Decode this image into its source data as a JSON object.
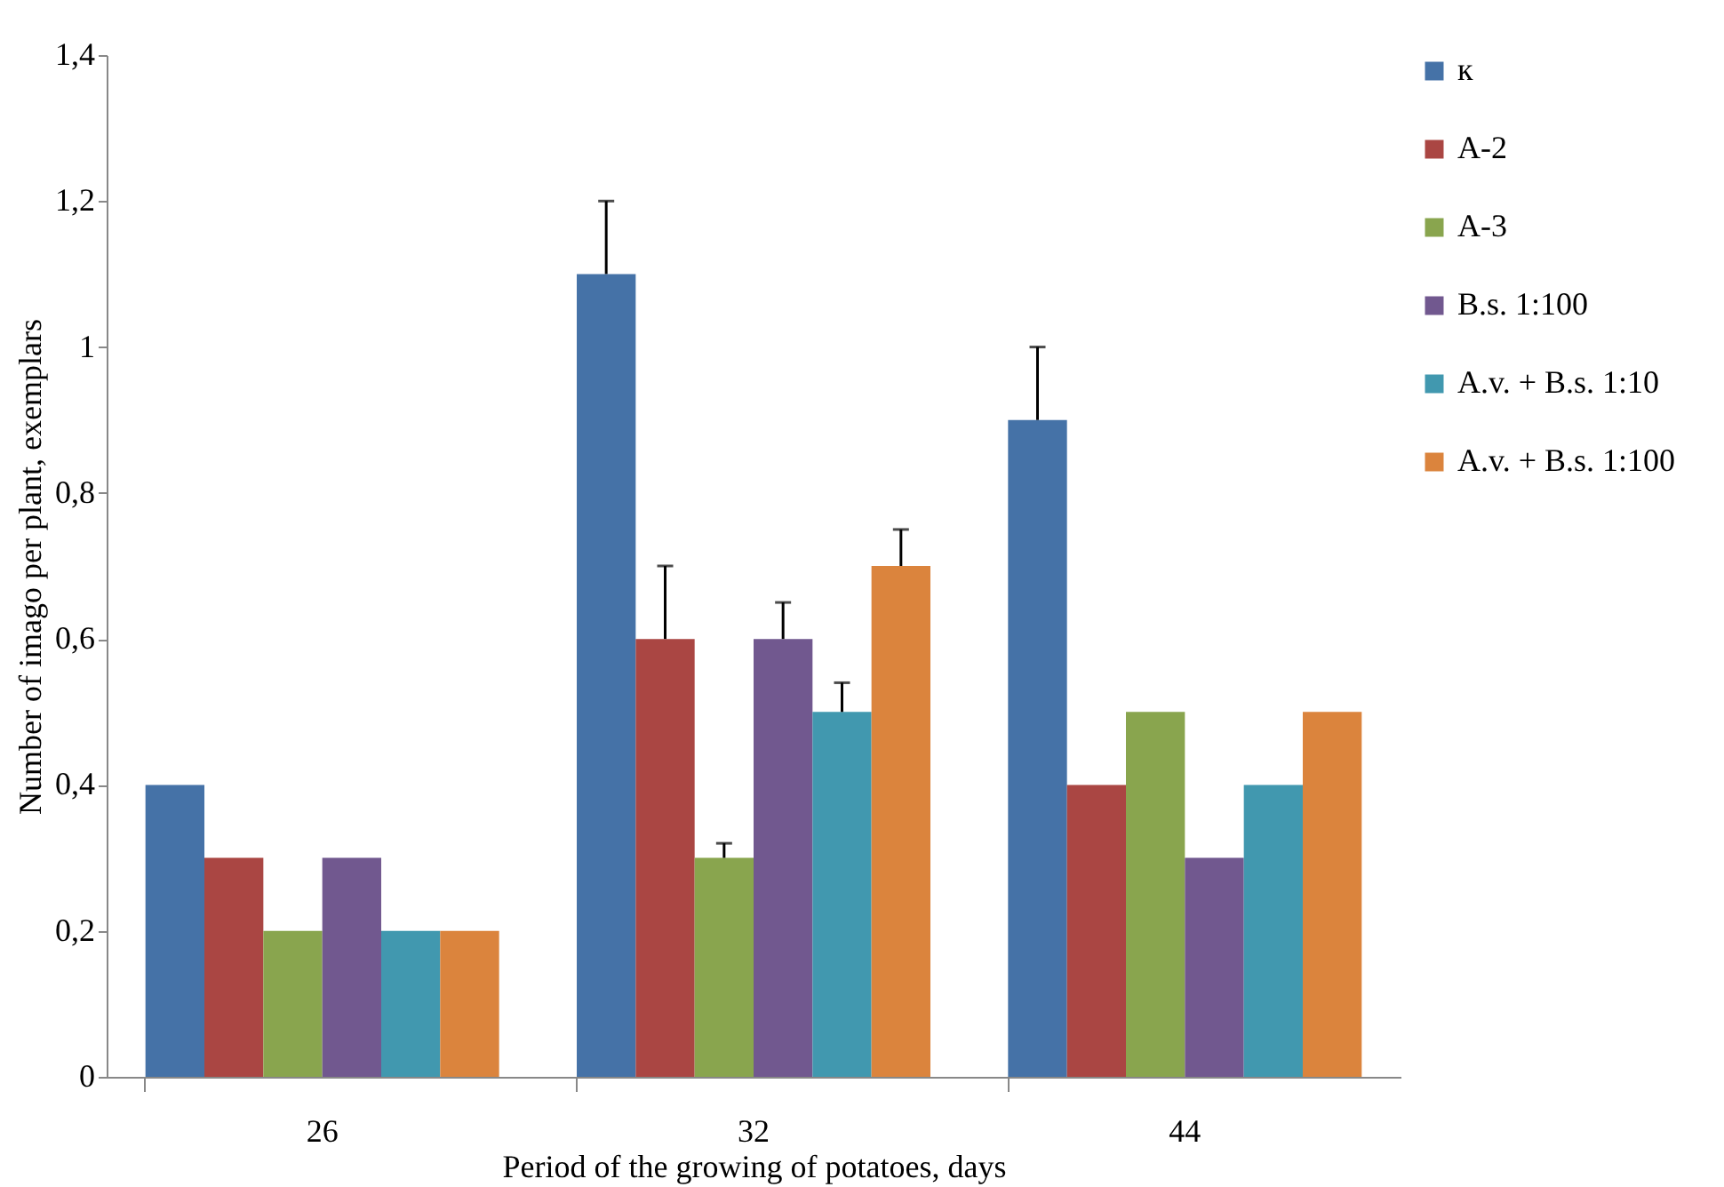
{
  "chart_data": {
    "type": "bar",
    "xlabel": "Period of the  growing of potatoes, days",
    "ylabel": "Number of imago per plant, exemplars",
    "categories": [
      "26",
      "32",
      "44"
    ],
    "series": [
      {
        "name": "к",
        "color": "#4572a7",
        "values": [
          0.4,
          1.1,
          0.9
        ],
        "errors": [
          null,
          [
            1.1,
            1.2
          ],
          [
            0.9,
            1.0
          ]
        ]
      },
      {
        "name": "A-2",
        "color": "#aa4643",
        "values": [
          0.3,
          0.6,
          0.4
        ],
        "errors": [
          null,
          [
            0.6,
            0.7
          ],
          null
        ]
      },
      {
        "name": "A-3",
        "color": "#89a54e",
        "values": [
          0.2,
          0.3,
          0.5
        ],
        "errors": [
          null,
          [
            0.3,
            0.32
          ],
          null
        ]
      },
      {
        "name": "B.s. 1:100",
        "color": "#71588f",
        "values": [
          0.3,
          0.6,
          0.3
        ],
        "errors": [
          null,
          [
            0.6,
            0.65
          ],
          null
        ]
      },
      {
        "name": "A.v. + B.s. 1:10",
        "color": "#4198af",
        "values": [
          0.2,
          0.5,
          0.4
        ],
        "errors": [
          null,
          [
            0.5,
            0.54
          ],
          null
        ]
      },
      {
        "name": "A.v. + B.s. 1:100",
        "color": "#db843d",
        "values": [
          0.2,
          0.7,
          0.5
        ],
        "errors": [
          null,
          [
            0.7,
            0.75
          ],
          null
        ]
      }
    ],
    "ylim": [
      0,
      1.4
    ],
    "yticks": [
      0,
      {
        "value": 0.2,
        "label": "0,2"
      },
      {
        "value": 0.4,
        "label": "0,4"
      },
      {
        "value": 0.6,
        "label": "0,6"
      },
      {
        "value": 0.8,
        "label": "0,8"
      },
      1,
      {
        "value": 1.2,
        "label": "1,2"
      },
      {
        "value": 1.4,
        "label": "1,4"
      }
    ],
    "grid": false,
    "legend": "right"
  }
}
